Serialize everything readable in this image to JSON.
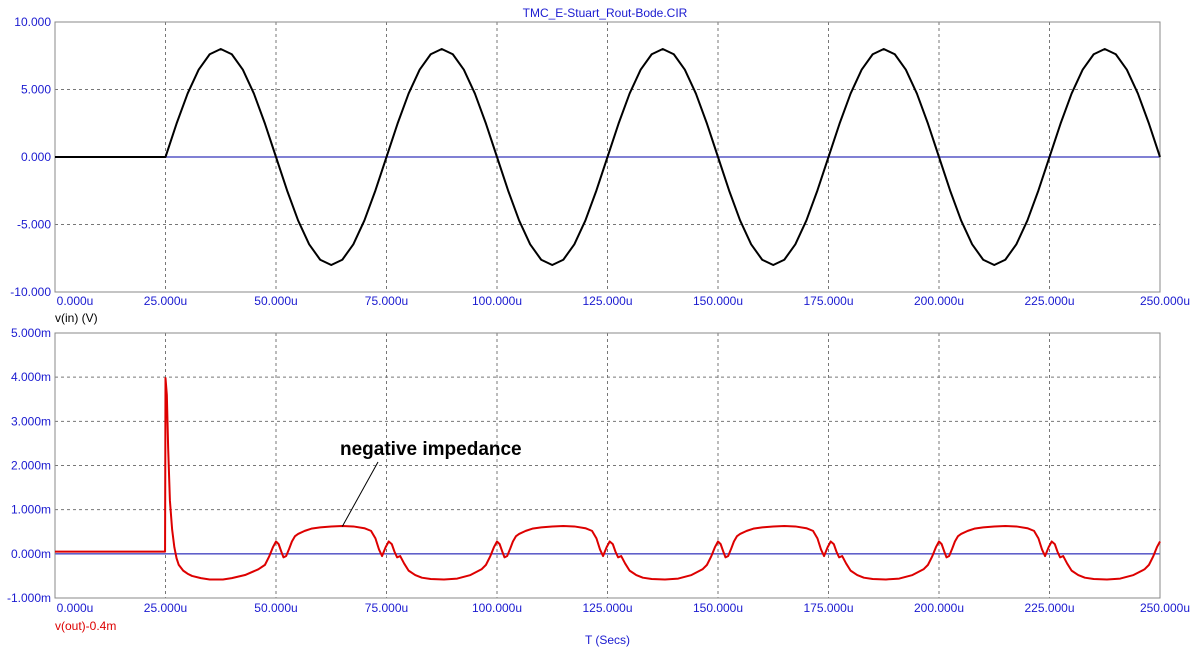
{
  "chart_data": [
    {
      "type": "line",
      "title": "TMC_E-Stuart_Rout-Bode.CIR",
      "xlabel": "",
      "ylabel": "v(in) (V)",
      "xlim": [
        0,
        250
      ],
      "ylim": [
        -10,
        10
      ],
      "x_tick_labels": [
        "0.000u",
        "25.000u",
        "50.000u",
        "75.000u",
        "100.000u",
        "125.000u",
        "150.000u",
        "175.000u",
        "200.000u",
        "225.000u",
        "250.000u"
      ],
      "y_tick_labels": [
        "10.000",
        "5.000",
        "0.000",
        "-5.000",
        "-10.000"
      ],
      "y_tick_values": [
        10,
        5,
        0,
        -5,
        -10
      ],
      "grid": true,
      "zero_line_color": "#0000aa",
      "series": [
        {
          "name": "v(in) (V)",
          "color": "#000000",
          "x": [
            0,
            25,
            25,
            27.5,
            30,
            32.5,
            35,
            37.5,
            40,
            42.5,
            45,
            47.5,
            50,
            52.5,
            55,
            57.5,
            60,
            62.5,
            65,
            67.5,
            70,
            72.5,
            75,
            77.5,
            80,
            82.5,
            85,
            87.5,
            90,
            92.5,
            95,
            97.5,
            100,
            102.5,
            105,
            107.5,
            110,
            112.5,
            115,
            117.5,
            120,
            122.5,
            125,
            127.5,
            130,
            132.5,
            135,
            137.5,
            140,
            142.5,
            145,
            147.5,
            150,
            152.5,
            155,
            157.5,
            160,
            162.5,
            165,
            167.5,
            170,
            172.5,
            175,
            177.5,
            180,
            182.5,
            185,
            187.5,
            190,
            192.5,
            195,
            197.5,
            200,
            202.5,
            205,
            207.5,
            210,
            212.5,
            215,
            217.5,
            220,
            222.5,
            225,
            227.5,
            230,
            232.5,
            235,
            237.5,
            240,
            242.5,
            245,
            247.5,
            250
          ],
          "y": [
            0,
            0,
            0,
            2.47,
            4.7,
            6.47,
            7.61,
            8,
            7.61,
            6.47,
            4.7,
            2.47,
            0,
            -2.47,
            -4.7,
            -6.47,
            -7.61,
            -8,
            -7.61,
            -6.47,
            -4.7,
            -2.47,
            0,
            2.47,
            4.7,
            6.47,
            7.61,
            8,
            7.61,
            6.47,
            4.7,
            2.47,
            0,
            -2.47,
            -4.7,
            -6.47,
            -7.61,
            -8,
            -7.61,
            -6.47,
            -4.7,
            -2.47,
            0,
            2.47,
            4.7,
            6.47,
            7.61,
            8,
            7.61,
            6.47,
            4.7,
            2.47,
            0,
            -2.47,
            -4.7,
            -6.47,
            -7.61,
            -8,
            -7.61,
            -6.47,
            -4.7,
            -2.47,
            0,
            2.47,
            4.7,
            6.47,
            7.61,
            8,
            7.61,
            6.47,
            4.7,
            2.47,
            0,
            -2.47,
            -4.7,
            -6.47,
            -7.61,
            -8,
            -7.61,
            -6.47,
            -4.7,
            -2.47,
            0,
            2.47,
            4.7,
            6.47,
            7.61,
            8,
            7.61,
            6.47,
            4.7,
            2.47,
            0
          ]
        }
      ]
    },
    {
      "type": "line",
      "title": "",
      "xlabel": "T (Secs)",
      "ylabel": "v(out)-0.4m",
      "xlim": [
        0,
        250
      ],
      "ylim": [
        -1,
        5
      ],
      "x_tick_labels": [
        "0.000u",
        "25.000u",
        "50.000u",
        "75.000u",
        "100.000u",
        "125.000u",
        "150.000u",
        "175.000u",
        "200.000u",
        "225.000u",
        "250.000u"
      ],
      "y_tick_labels": [
        "5.000m",
        "4.000m",
        "3.000m",
        "2.000m",
        "1.000m",
        "0.000m",
        "-1.000m"
      ],
      "y_tick_values": [
        5,
        4,
        3,
        2,
        1,
        0,
        -1
      ],
      "grid": true,
      "zero_line_color": "#0000aa",
      "annotation": {
        "text": "negative impedance",
        "x": 65,
        "y": 0.62
      },
      "series": [
        {
          "name": "v(out)-0.4m",
          "color": "#dd0000",
          "x": [
            0,
            24.9,
            25,
            25.3,
            25.6,
            26,
            26.5,
            27,
            27.5,
            28,
            29,
            30,
            31,
            33,
            35,
            38,
            40,
            43,
            46,
            47.5,
            48.5,
            49.3,
            50,
            50.6,
            51.2,
            51.7,
            52.3,
            53,
            53.6,
            54.3,
            55,
            56.5,
            58,
            60,
            62.5,
            65,
            67.5,
            70,
            71.5,
            72.5,
            73.3,
            74,
            74.8,
            75.5,
            76.2,
            76.8,
            77.4,
            78.1,
            79,
            80,
            81.5,
            83,
            85,
            88,
            91,
            94,
            96.5,
            97.5,
            98.5,
            99.3,
            100,
            100.6,
            101.2,
            101.7,
            102.3,
            103,
            103.6,
            104.3,
            105,
            106.5,
            108,
            110,
            112.5,
            115,
            117.5,
            120,
            121.5,
            122.5,
            123.3,
            124,
            124.8,
            125.5,
            126.2,
            126.8,
            127.4,
            128.1,
            129,
            130,
            131.5,
            133,
            135,
            138,
            141,
            144,
            146.5,
            147.5,
            148.5,
            149.3,
            150,
            150.6,
            151.2,
            151.7,
            152.3,
            153,
            153.6,
            154.3,
            155,
            156.5,
            158,
            160,
            162.5,
            165,
            167.5,
            170,
            171.5,
            172.5,
            173.3,
            174,
            174.8,
            175.5,
            176.2,
            176.8,
            177.4,
            178.1,
            179,
            180,
            181.5,
            183,
            185,
            188,
            191,
            194,
            196.5,
            197.5,
            198.5,
            199.3,
            200,
            200.6,
            201.2,
            201.7,
            202.3,
            203,
            203.6,
            204.3,
            205,
            206.5,
            208,
            210,
            212.5,
            215,
            217.5,
            220,
            221.5,
            222.5,
            223.3,
            224,
            224.8,
            225.5,
            226.2,
            226.8,
            227.4,
            228.1,
            229,
            230,
            231.5,
            233,
            235,
            238,
            241,
            244,
            246.5,
            247.5,
            248.5,
            249.3,
            250
          ],
          "y": [
            0.05,
            0.05,
            3.98,
            3.6,
            2.4,
            1.2,
            0.55,
            0.15,
            -0.1,
            -0.25,
            -0.38,
            -0.45,
            -0.5,
            -0.55,
            -0.58,
            -0.58,
            -0.55,
            -0.48,
            -0.35,
            -0.25,
            -0.05,
            0.15,
            0.28,
            0.22,
            0.05,
            -0.08,
            -0.05,
            0.12,
            0.28,
            0.4,
            0.45,
            0.52,
            0.57,
            0.6,
            0.62,
            0.63,
            0.62,
            0.58,
            0.52,
            0.35,
            0.1,
            -0.05,
            0.15,
            0.28,
            0.22,
            0.05,
            -0.08,
            -0.05,
            -0.22,
            -0.38,
            -0.48,
            -0.54,
            -0.57,
            -0.58,
            -0.56,
            -0.48,
            -0.35,
            -0.25,
            -0.05,
            0.15,
            0.28,
            0.22,
            0.05,
            -0.08,
            -0.05,
            0.12,
            0.28,
            0.4,
            0.45,
            0.52,
            0.57,
            0.6,
            0.62,
            0.63,
            0.62,
            0.58,
            0.52,
            0.35,
            0.1,
            -0.05,
            0.15,
            0.28,
            0.22,
            0.05,
            -0.08,
            -0.05,
            -0.22,
            -0.38,
            -0.48,
            -0.54,
            -0.57,
            -0.58,
            -0.56,
            -0.48,
            -0.35,
            -0.25,
            -0.05,
            0.15,
            0.28,
            0.22,
            0.05,
            -0.08,
            -0.05,
            0.12,
            0.28,
            0.4,
            0.45,
            0.52,
            0.57,
            0.6,
            0.62,
            0.63,
            0.62,
            0.58,
            0.52,
            0.35,
            0.1,
            -0.05,
            0.15,
            0.28,
            0.22,
            0.05,
            -0.08,
            -0.05,
            -0.22,
            -0.38,
            -0.48,
            -0.54,
            -0.57,
            -0.58,
            -0.56,
            -0.48,
            -0.35,
            -0.25,
            -0.05,
            0.15,
            0.28,
            0.22,
            0.05,
            -0.08,
            -0.05,
            0.12,
            0.28,
            0.4,
            0.45,
            0.52,
            0.57,
            0.6,
            0.62,
            0.63,
            0.62,
            0.58,
            0.52,
            0.35,
            0.1,
            -0.05,
            0.15,
            0.28,
            0.22,
            0.05,
            -0.08,
            -0.05,
            -0.22,
            -0.38,
            -0.48,
            -0.54,
            -0.57,
            -0.58,
            -0.56,
            -0.48,
            -0.35,
            -0.25,
            -0.05,
            0.15,
            0.28
          ]
        }
      ]
    }
  ]
}
